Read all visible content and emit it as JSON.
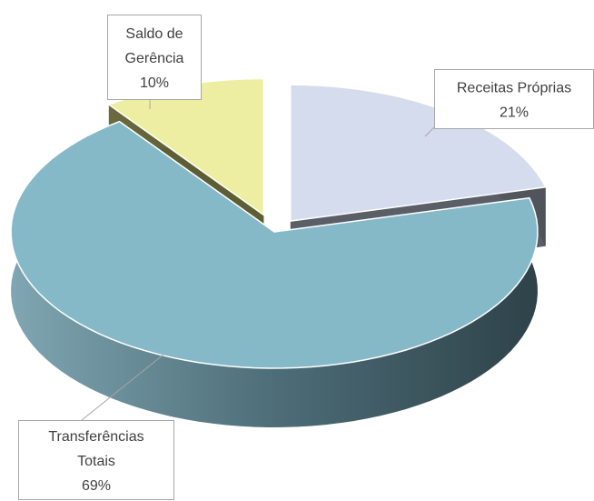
{
  "chart_data": {
    "type": "pie3d",
    "categories": [
      "Receitas Próprias",
      "Transferências Totais",
      "Saldo de Gerência"
    ],
    "values": [
      21,
      69,
      10
    ],
    "value_labels": [
      "21%",
      "69%",
      "10%"
    ],
    "colors": [
      "#d5dcee",
      "#86b9c8",
      "#eeeea2"
    ]
  }
}
